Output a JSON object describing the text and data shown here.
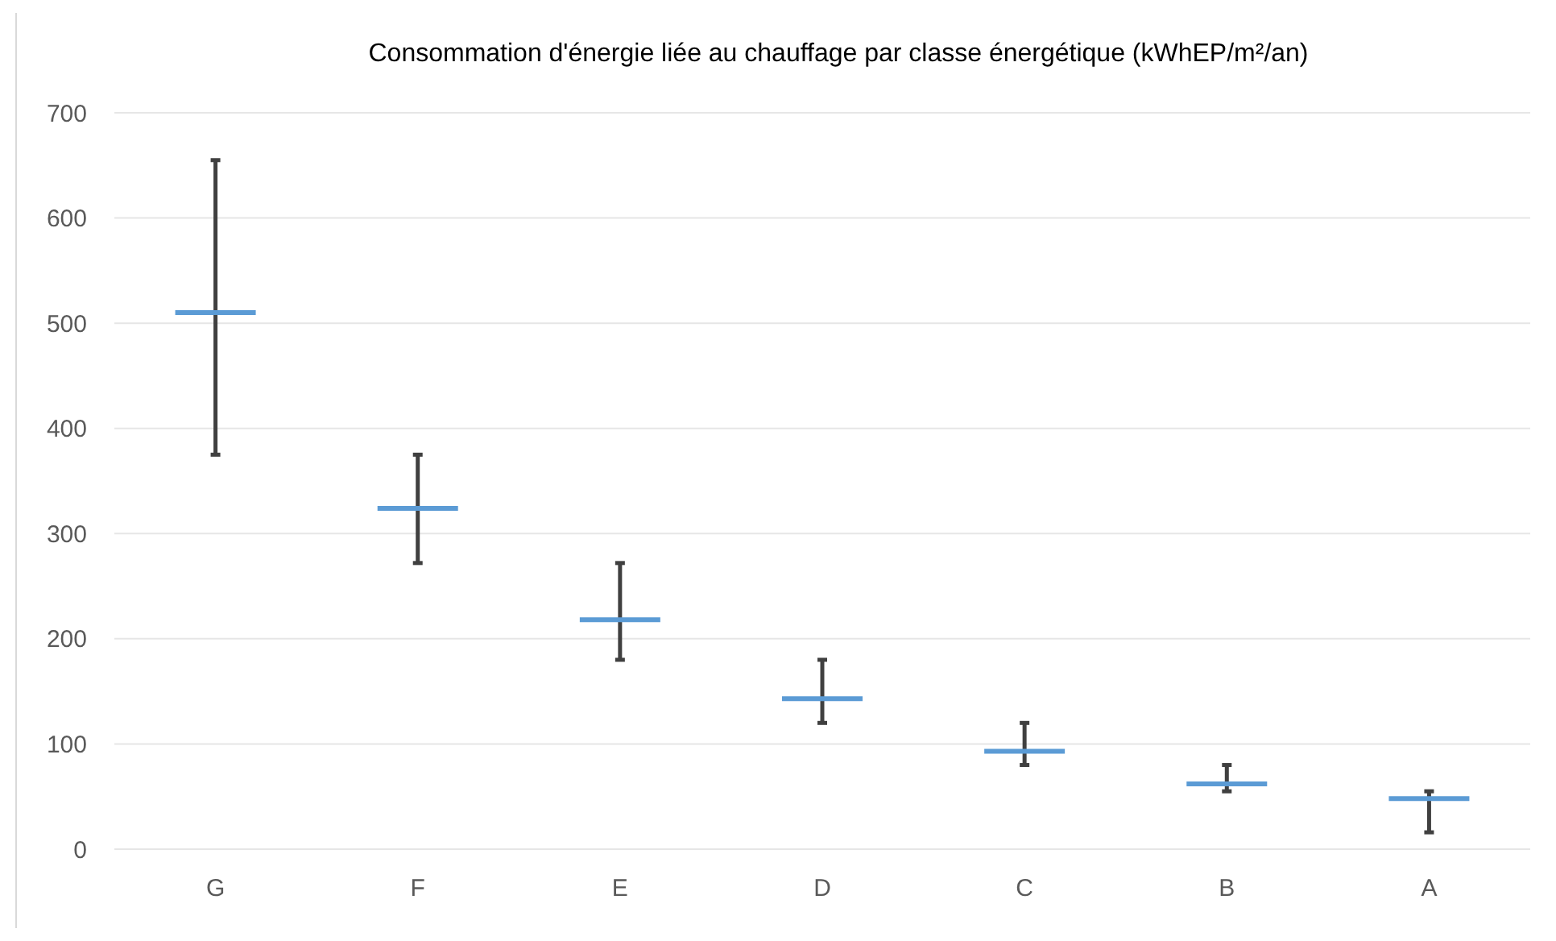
{
  "chart_data": {
    "type": "box",
    "title": "Consommation d'énergie liée au chauffage par classe énergétique (kWhEP/m²/an)",
    "categories": [
      "G",
      "F",
      "E",
      "D",
      "C",
      "B",
      "A"
    ],
    "series": [
      {
        "color": "#5b9bd5",
        "boxes": [
          {
            "low": 375,
            "q1": 510,
            "median": 510,
            "q3": 510,
            "high": 655
          },
          {
            "low": 272,
            "q1": 324,
            "median": 324,
            "q3": 324,
            "high": 375
          },
          {
            "low": 180,
            "q1": 218,
            "median": 218,
            "q3": 218,
            "high": 272
          },
          {
            "low": 120,
            "q1": 143,
            "median": 143,
            "q3": 143,
            "high": 180
          },
          {
            "low": 80,
            "q1": 93,
            "median": 93,
            "q3": 93,
            "high": 120
          },
          {
            "low": 55,
            "q1": 62,
            "median": 62,
            "q3": 62,
            "high": 80
          },
          {
            "low": 16,
            "q1": 48,
            "median": 48,
            "q3": 48,
            "high": 55
          }
        ]
      }
    ],
    "ylim": [
      0,
      700
    ],
    "yticks": [
      0,
      100,
      200,
      300,
      400,
      500,
      600,
      700
    ],
    "grid": "y"
  }
}
